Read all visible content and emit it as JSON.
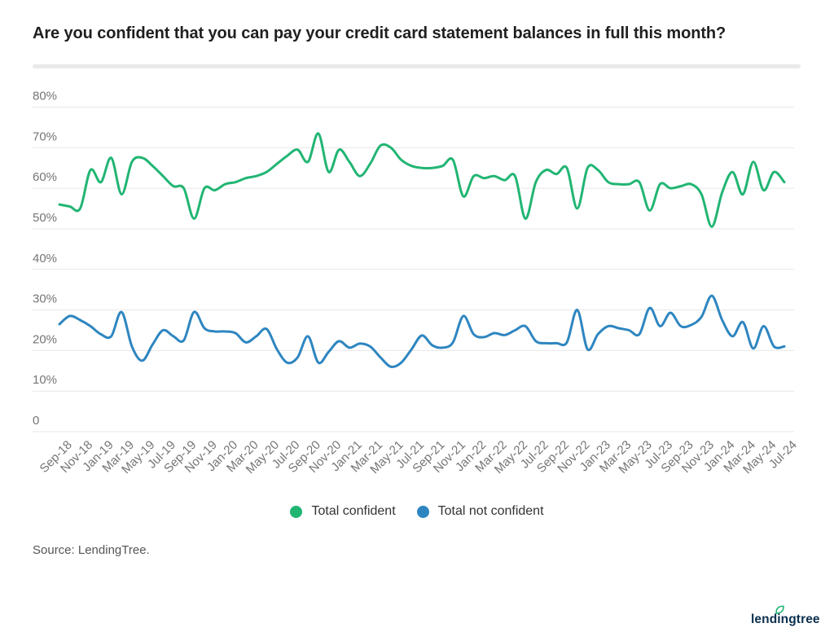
{
  "header": {
    "title": "Are you confident that you can pay your credit card statement balances in full this month?"
  },
  "chart_data": {
    "type": "line",
    "title": "Are you confident that you can pay your credit card statement balances in full this month?",
    "xlabel": "",
    "ylabel": "",
    "ylim": [
      0,
      80
    ],
    "grid": true,
    "legend_position": "bottom",
    "layout": {
      "tick_every": 2
    },
    "y_ticks": {
      "values": [
        80,
        70,
        60,
        50,
        40,
        30,
        20,
        10,
        0
      ],
      "labels": [
        "80%",
        "70%",
        "60%",
        "50%",
        "40%",
        "30%",
        "20%",
        "10%",
        "0"
      ]
    },
    "categories": [
      "Sep-18",
      "Oct-18",
      "Nov-18",
      "Dec-18",
      "Jan-19",
      "Feb-19",
      "Mar-19",
      "Apr-19",
      "May-19",
      "Jun-19",
      "Jul-19",
      "Aug-19",
      "Sep-19",
      "Oct-19",
      "Nov-19",
      "Dec-19",
      "Jan-20",
      "Feb-20",
      "Mar-20",
      "Apr-20",
      "May-20",
      "Jun-20",
      "Jul-20",
      "Aug-20",
      "Sep-20",
      "Oct-20",
      "Nov-20",
      "Dec-20",
      "Jan-21",
      "Feb-21",
      "Mar-21",
      "Apr-21",
      "May-21",
      "Jun-21",
      "Jul-21",
      "Aug-21",
      "Sep-21",
      "Oct-21",
      "Nov-21",
      "Dec-21",
      "Jan-22",
      "Feb-22",
      "Mar-22",
      "Apr-22",
      "May-22",
      "Jun-22",
      "Jul-22",
      "Aug-22",
      "Sep-22",
      "Oct-22",
      "Nov-22",
      "Dec-22",
      "Jan-23",
      "Feb-23",
      "Mar-23",
      "Apr-23",
      "May-23",
      "Jun-23",
      "Jul-23",
      "Aug-23",
      "Sep-23",
      "Oct-23",
      "Nov-23",
      "Dec-23",
      "Jan-24",
      "Feb-24",
      "Mar-24",
      "Apr-24",
      "May-24",
      "Jun-24",
      "Jul-24"
    ],
    "series": [
      {
        "name": "Total confident",
        "color": "#21b573",
        "values": [
          56,
          55.5,
          55,
          64.5,
          61.5,
          67.5,
          58.5,
          66.5,
          67.5,
          65.5,
          63,
          60.5,
          60,
          52.5,
          60,
          59.5,
          61,
          61.5,
          62.5,
          63,
          64,
          66,
          68,
          69.5,
          66.5,
          73.5,
          64,
          69.5,
          66.5,
          63,
          66,
          70.5,
          70,
          67,
          65.5,
          65,
          65,
          65.5,
          67,
          58,
          63,
          62.5,
          63,
          62,
          63,
          52.5,
          61.5,
          64.5,
          63.5,
          65,
          55,
          65,
          64.5,
          61.5,
          61,
          61,
          61.5,
          54.5,
          61,
          60,
          60.5,
          61,
          58.5,
          50.5,
          59,
          64,
          58.5,
          66.5,
          59.5,
          64,
          61.5
        ]
      },
      {
        "name": "Total not confident",
        "color": "#2e86c0",
        "values": [
          26.5,
          28.5,
          27.5,
          26,
          24,
          23.5,
          29.5,
          21,
          17.5,
          21.5,
          25,
          23.5,
          22.5,
          29.5,
          25.5,
          24.7,
          24.7,
          24.3,
          22,
          23.5,
          25.3,
          20.3,
          17,
          18.3,
          23.5,
          17,
          19.7,
          22.3,
          20.7,
          21.7,
          21,
          18.3,
          16,
          17,
          20.3,
          23.7,
          21.3,
          20.7,
          22,
          28.5,
          24,
          23.3,
          24.3,
          23.8,
          25,
          26,
          22.3,
          21.8,
          21.8,
          22,
          30,
          20.3,
          24,
          26,
          25.5,
          25,
          24,
          30.5,
          26,
          29.3,
          26,
          26.3,
          28.3,
          33.5,
          27.5,
          23.5,
          27,
          20.5,
          26,
          21,
          21
        ]
      }
    ]
  },
  "footer": {
    "source": "Source: LendingTree.",
    "logo_text": "lendingtree",
    "logo_color": "#0b2f4e",
    "logo_leaf_color": "#21b573"
  }
}
